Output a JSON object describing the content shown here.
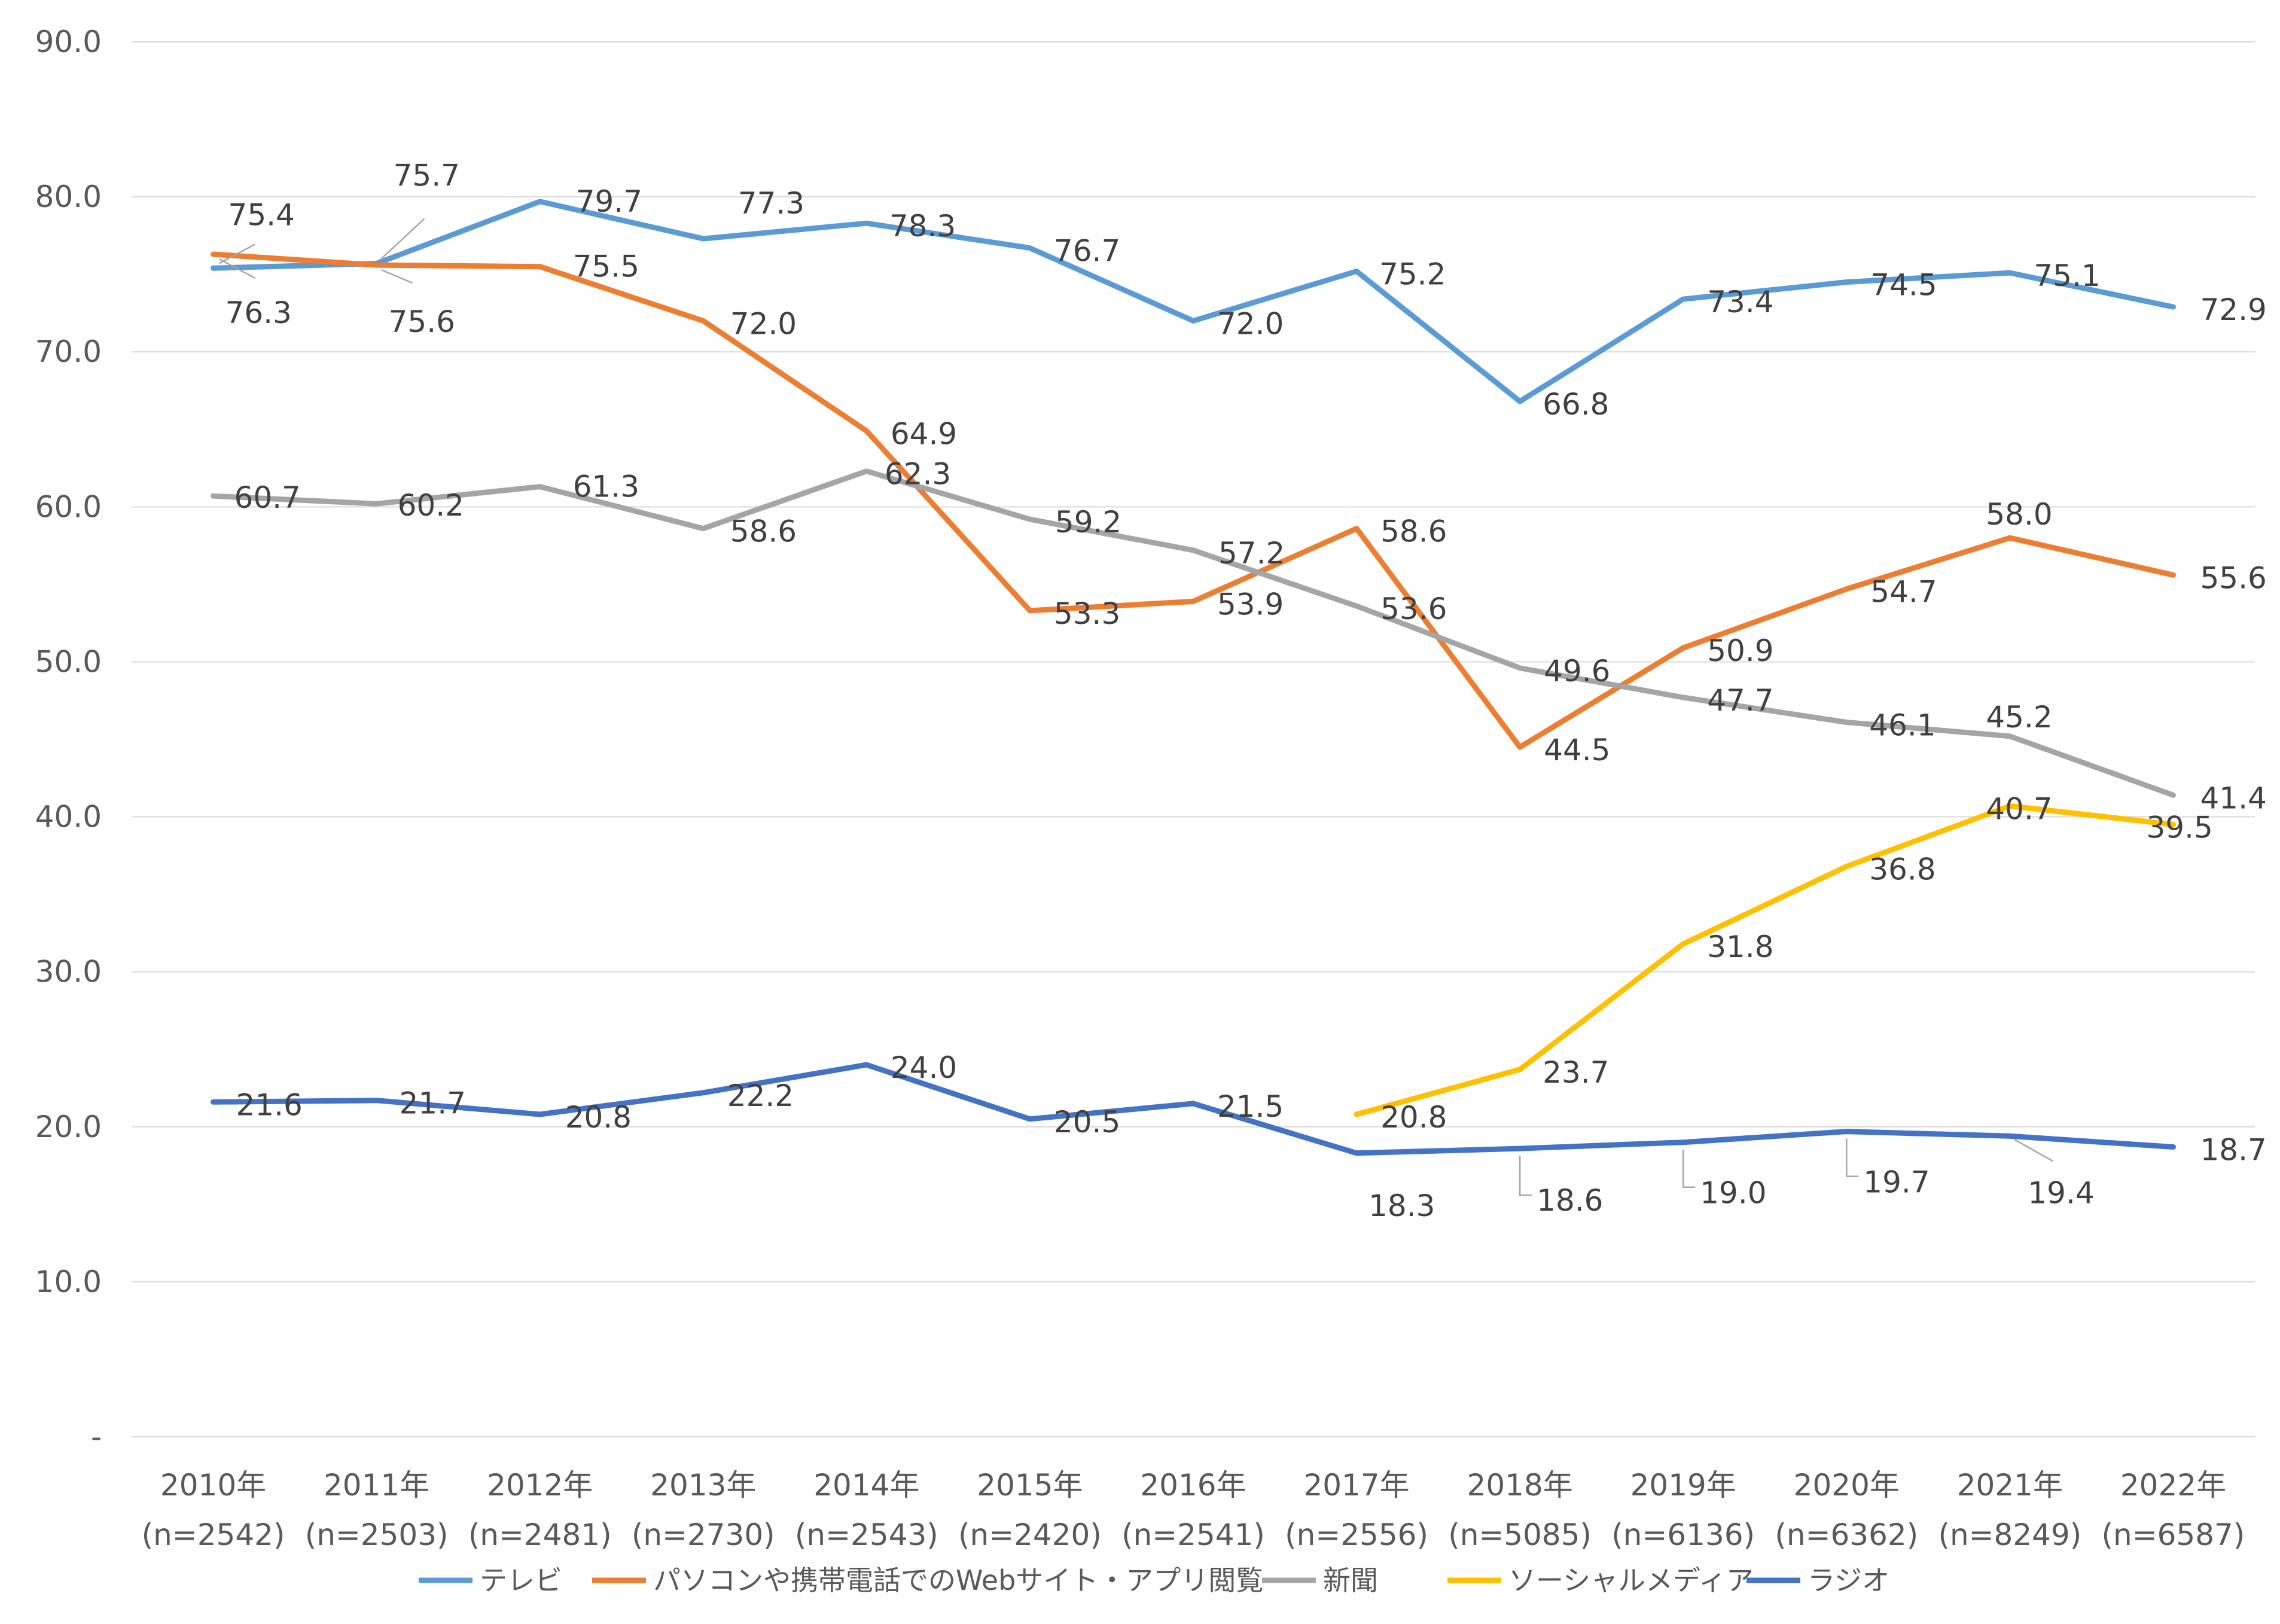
{
  "chart_data": {
    "type": "line",
    "title": "",
    "xlabel": "",
    "ylabel": "",
    "ylim": [
      0,
      90
    ],
    "yticks": [
      "-",
      "10.0",
      "20.0",
      "30.0",
      "40.0",
      "50.0",
      "60.0",
      "70.0",
      "80.0",
      "90.0"
    ],
    "grid": true,
    "legend_position": "bottom",
    "categories": [
      "2010年",
      "2011年",
      "2012年",
      "2013年",
      "2014年",
      "2015年",
      "2016年",
      "2017年",
      "2018年",
      "2019年",
      "2020年",
      "2021年",
      "2022年"
    ],
    "category_n": [
      "(n=2542)",
      "(n=2503)",
      "(n=2481)",
      "(n=2730)",
      "(n=2543)",
      "(n=2420)",
      "(n=2541)",
      "(n=2556)",
      "(n=5085)",
      "(n=6136)",
      "(n=6362)",
      "(n=8249)",
      "(n=6587)"
    ],
    "series": [
      {
        "name": "テレビ",
        "color": "#5b9bd5",
        "values": [
          75.4,
          75.7,
          79.7,
          77.3,
          78.3,
          76.7,
          72.0,
          75.2,
          66.8,
          73.4,
          74.5,
          75.1,
          72.9
        ],
        "labels": [
          "75.4",
          "75.7",
          "79.7",
          "77.3",
          "78.3",
          "76.7",
          "72.0",
          "75.2",
          "66.8",
          "73.4",
          "74.5",
          "75.1",
          "72.9"
        ]
      },
      {
        "name": "パソコンや携帯電話でのWebサイト・アプリ閲覧",
        "color": "#ed7d31",
        "values": [
          76.3,
          75.6,
          75.5,
          72.0,
          64.9,
          53.3,
          53.9,
          58.6,
          44.5,
          50.9,
          54.7,
          58.0,
          55.6
        ],
        "labels": [
          "76.3",
          "75.6",
          "75.5",
          "72.0",
          "64.9",
          "53.3",
          "53.9",
          "58.6",
          "44.5",
          "50.9",
          "54.7",
          "58.0",
          "55.6"
        ]
      },
      {
        "name": "新聞",
        "color": "#a5a5a5",
        "values": [
          60.7,
          60.2,
          61.3,
          58.6,
          62.3,
          59.2,
          57.2,
          53.6,
          49.6,
          47.7,
          46.1,
          45.2,
          41.4
        ],
        "labels": [
          "60.7",
          "60.2",
          "61.3",
          "58.6",
          "62.3",
          "59.2",
          "57.2",
          "53.6",
          "49.6",
          "47.7",
          "46.1",
          "45.2",
          "41.4"
        ]
      },
      {
        "name": "ソーシャルメディア",
        "color": "#ffc000",
        "values": [
          null,
          null,
          null,
          null,
          null,
          null,
          null,
          20.8,
          23.7,
          31.8,
          36.8,
          40.7,
          39.5
        ],
        "labels": [
          null,
          null,
          null,
          null,
          null,
          null,
          null,
          "20.8",
          "23.7",
          "31.8",
          "36.8",
          "40.7",
          "39.5"
        ]
      },
      {
        "name": "ラジオ",
        "color": "#4472c4",
        "values": [
          21.6,
          21.7,
          20.8,
          22.2,
          24.0,
          20.5,
          21.5,
          18.3,
          18.6,
          19.0,
          19.7,
          19.4,
          18.7
        ],
        "labels": [
          "21.6",
          "21.7",
          "20.8",
          "22.2",
          "24.0",
          "20.5",
          "21.5",
          "18.3",
          "18.6",
          "19.0",
          "19.7",
          "19.4",
          "18.7"
        ]
      }
    ]
  }
}
